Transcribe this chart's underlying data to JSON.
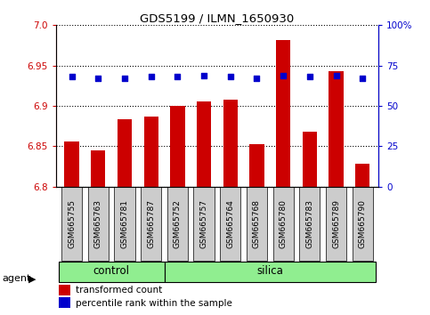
{
  "title": "GDS5199 / ILMN_1650930",
  "samples": [
    "GSM665755",
    "GSM665763",
    "GSM665781",
    "GSM665787",
    "GSM665752",
    "GSM665757",
    "GSM665764",
    "GSM665768",
    "GSM665780",
    "GSM665783",
    "GSM665789",
    "GSM665790"
  ],
  "groups": [
    "control",
    "control",
    "control",
    "control",
    "silica",
    "silica",
    "silica",
    "silica",
    "silica",
    "silica",
    "silica",
    "silica"
  ],
  "bar_values": [
    6.856,
    6.845,
    6.883,
    6.887,
    6.9,
    6.905,
    6.908,
    6.852,
    6.982,
    6.868,
    6.943,
    6.828
  ],
  "percentile_values": [
    68,
    67,
    67,
    68,
    68,
    69,
    68,
    67,
    69,
    68,
    69,
    67
  ],
  "ylim_left": [
    6.8,
    7.0
  ],
  "ylim_right": [
    0,
    100
  ],
  "yticks_left": [
    6.8,
    6.85,
    6.9,
    6.95,
    7.0
  ],
  "yticks_right": [
    0,
    25,
    50,
    75,
    100
  ],
  "ytick_labels_right": [
    "0",
    "25",
    "50",
    "75",
    "100%"
  ],
  "bar_color": "#cc0000",
  "dot_color": "#0000cc",
  "control_color": "#90ee90",
  "silica_color": "#90ee90",
  "bg_color": "#cccccc",
  "bar_bottom": 6.8,
  "group_label_control": "control",
  "group_label_silica": "silica",
  "agent_label": "agent",
  "legend_bar": "transformed count",
  "legend_dot": "percentile rank within the sample",
  "n_control": 4,
  "n_total": 12
}
